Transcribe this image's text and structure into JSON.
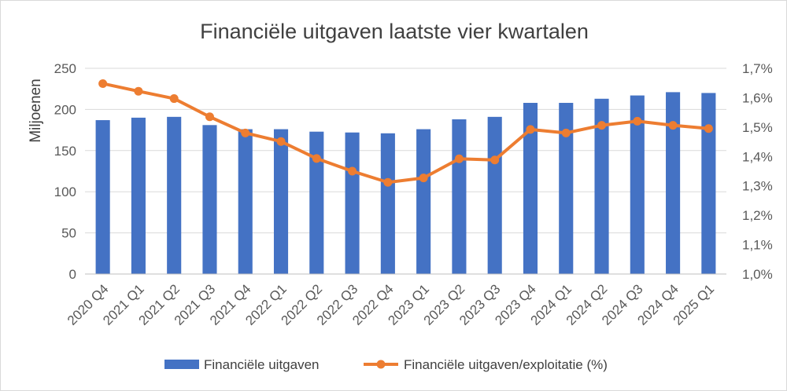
{
  "chart_data": {
    "type": "bar+line",
    "title": "Financiële uitgaven laatste vier kwartalen",
    "ylabel": "Miljoenen",
    "ylim": [
      0,
      250
    ],
    "y_ticks": [
      "0",
      "50",
      "100",
      "150",
      "200",
      "250"
    ],
    "y2lim": [
      1.0,
      1.7
    ],
    "y2_ticks": [
      "1,0%",
      "1,1%",
      "1,2%",
      "1,3%",
      "1,4%",
      "1,5%",
      "1,6%",
      "1,7%"
    ],
    "categories": [
      "2020 Q4",
      "2021 Q1",
      "2021 Q2",
      "2021 Q3",
      "2021 Q4",
      "2022 Q1",
      "2022 Q2",
      "2022 Q3",
      "2022 Q4",
      "2023 Q1",
      "2023 Q2",
      "2023 Q3",
      "2023 Q4",
      "2024 Q1",
      "2024 Q2",
      "2024 Q3",
      "2024 Q4",
      "2025 Q1"
    ],
    "series": [
      {
        "name": "Financiële uitgaven",
        "type": "bar",
        "axis": "left",
        "color": "#4472C4",
        "values": [
          187,
          190,
          191,
          181,
          176,
          176,
          173,
          172,
          171,
          176,
          188,
          191,
          208,
          208,
          213,
          217,
          221,
          220
        ]
      },
      {
        "name": "Financiële uitgaven/exploitatie (%)",
        "type": "line",
        "axis": "right",
        "color": "#ED7D31",
        "values": [
          1.648,
          1.622,
          1.597,
          1.535,
          1.48,
          1.451,
          1.393,
          1.35,
          1.312,
          1.327,
          1.392,
          1.388,
          1.492,
          1.48,
          1.506,
          1.52,
          1.506,
          1.495
        ]
      }
    ],
    "legend_position": "bottom",
    "grid": true
  }
}
